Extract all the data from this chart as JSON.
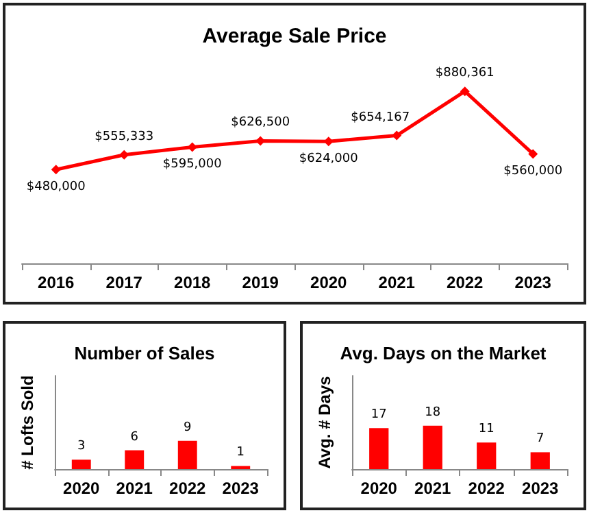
{
  "chart_data": [
    {
      "type": "line",
      "title": "Average Sale Price",
      "categories": [
        "2016",
        "2017",
        "2018",
        "2019",
        "2020",
        "2021",
        "2022",
        "2023"
      ],
      "series": [
        {
          "color": "#ff0000",
          "values": [
            480000,
            555333,
            595000,
            626500,
            624000,
            654167,
            880361,
            560000
          ],
          "value_labels": [
            "$480,000",
            "$555,333",
            "$595,000",
            "$626,500",
            "$624,000",
            "$654,167",
            "$880,361",
            "$560,000"
          ]
        }
      ],
      "tick_labels": "x",
      "marker": "diamond",
      "grid": false
    },
    {
      "type": "bar",
      "title": "Number of Sales",
      "ylabel": "# Lofts Sold",
      "categories": [
        "2020",
        "2021",
        "2022",
        "2023"
      ],
      "series": [
        {
          "color": "#ff0000",
          "values": [
            3,
            6,
            9,
            1
          ]
        }
      ],
      "tick_labels": "x",
      "data_labels": true,
      "grid": false
    },
    {
      "type": "bar",
      "title": "Avg. Days on the Market",
      "ylabel": "Avg. # Days",
      "categories": [
        "2020",
        "2021",
        "2022",
        "2023"
      ],
      "series": [
        {
          "color": "#ff0000",
          "values": [
            17,
            18,
            11,
            7
          ]
        }
      ],
      "tick_labels": "x",
      "data_labels": true,
      "grid": false
    }
  ]
}
